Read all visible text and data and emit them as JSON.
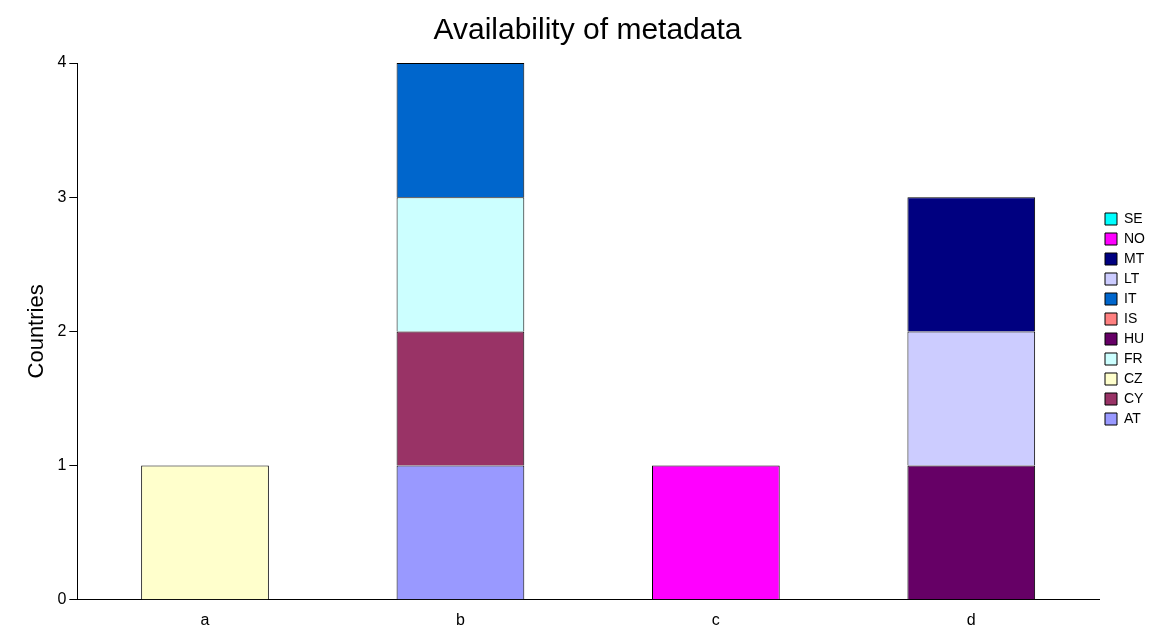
{
  "chart_data": {
    "type": "bar",
    "title": "Availability of metadata",
    "ylabel": "Countries",
    "categories": [
      "a",
      "b",
      "c",
      "d"
    ],
    "stacked": true,
    "ylim": [
      0,
      4
    ],
    "yticks": [
      0,
      1,
      2,
      3,
      4
    ],
    "legend": "right",
    "series": [
      {
        "name": "AT",
        "color": "#9999ff",
        "values": [
          0,
          1,
          0,
          0
        ]
      },
      {
        "name": "CY",
        "color": "#993366",
        "values": [
          0,
          1,
          0,
          0
        ]
      },
      {
        "name": "CZ",
        "color": "#ffffcc",
        "values": [
          1,
          0,
          0,
          0
        ]
      },
      {
        "name": "FR",
        "color": "#ccffff",
        "values": [
          0,
          1,
          0,
          0
        ]
      },
      {
        "name": "HU",
        "color": "#660066",
        "values": [
          0,
          0,
          0,
          1
        ]
      },
      {
        "name": "IS",
        "color": "#ff8080",
        "values": [
          0,
          0,
          0,
          0
        ]
      },
      {
        "name": "IT",
        "color": "#0066cc",
        "values": [
          0,
          1,
          0,
          0
        ]
      },
      {
        "name": "LT",
        "color": "#ccccff",
        "values": [
          0,
          0,
          0,
          1
        ]
      },
      {
        "name": "MT",
        "color": "#000080",
        "values": [
          0,
          0,
          0,
          1
        ]
      },
      {
        "name": "NO",
        "color": "#ff00ff",
        "values": [
          0,
          0,
          1,
          0
        ]
      },
      {
        "name": "SE",
        "color": "#00ffff",
        "values": [
          0,
          0,
          0,
          0
        ]
      }
    ]
  }
}
